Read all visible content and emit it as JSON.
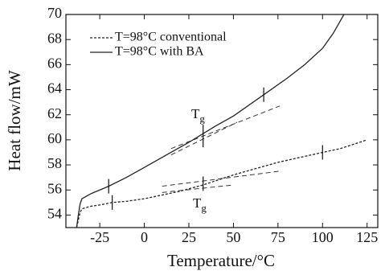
{
  "chart_data": {
    "type": "line",
    "xlabel": "Temperature/°C",
    "ylabel": "Heat flow/mW",
    "xlim": [
      -44,
      131
    ],
    "ylim": [
      53,
      70
    ],
    "xticks": [
      -25,
      0,
      25,
      50,
      75,
      100,
      125
    ],
    "yticks": [
      54,
      56,
      58,
      60,
      62,
      64,
      66,
      68,
      70
    ],
    "series": [
      {
        "name": "T=98°C conventional",
        "color": "#222",
        "dash": "3,2",
        "x": [
          -38,
          -37,
          -36,
          -35,
          -30,
          -25,
          -18,
          -10,
          0,
          10,
          20,
          33,
          50,
          75,
          100,
          110,
          125
        ],
        "values": [
          53.0,
          53.6,
          54.2,
          54.5,
          54.7,
          54.8,
          55.0,
          55.1,
          55.3,
          55.6,
          55.9,
          56.4,
          57.2,
          58.2,
          59.0,
          59.3,
          60.0
        ],
        "markers_x": [
          -18,
          33,
          100
        ],
        "markers_y": [
          55.0,
          56.5,
          59.0
        ]
      },
      {
        "name": "T=98°C with BA",
        "color": "#222",
        "dash": "",
        "x": [
          -38,
          -37,
          -36,
          -35,
          -30,
          -20,
          -10,
          0,
          10,
          25,
          40,
          50,
          67,
          80,
          90,
          100,
          106,
          112
        ],
        "values": [
          53.0,
          54.0,
          54.9,
          55.3,
          55.7,
          56.3,
          57.0,
          57.8,
          58.6,
          59.8,
          61.1,
          61.9,
          63.6,
          64.9,
          66.0,
          67.3,
          68.5,
          70.0
        ],
        "markers_x": [
          -20,
          33,
          67
        ],
        "markers_y": [
          56.3,
          60.3,
          63.6
        ]
      }
    ],
    "tangents": [
      {
        "x": [
          15,
          76
        ],
        "y": [
          59.3,
          62.7
        ]
      },
      {
        "x": [
          15,
          52
        ],
        "y": [
          58.8,
          61.4
        ]
      },
      {
        "x": [
          10,
          76
        ],
        "y": [
          56.3,
          57.5
        ]
      },
      {
        "x": [
          10,
          50
        ],
        "y": [
          55.8,
          56.4
        ]
      }
    ],
    "annotations": [
      {
        "text": "T",
        "subscript": "g"
      },
      {
        "text": "T",
        "subscript": "g"
      }
    ]
  }
}
